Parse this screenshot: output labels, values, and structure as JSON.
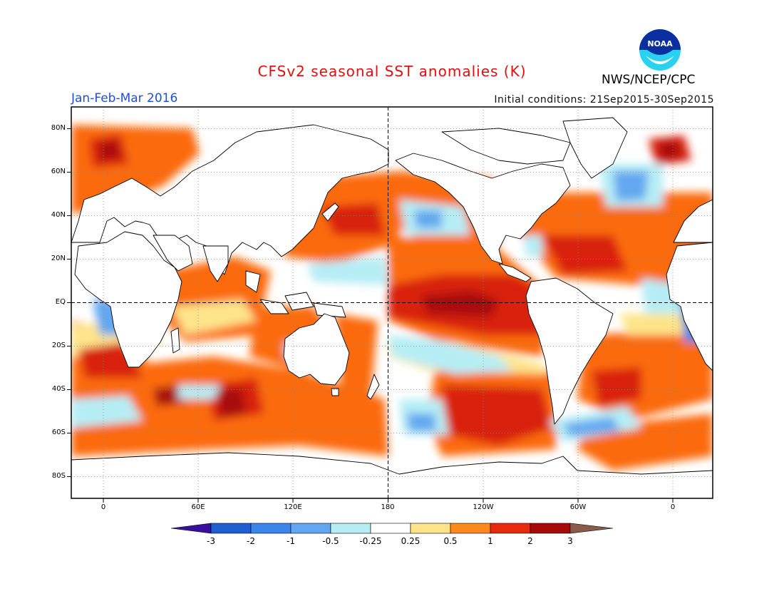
{
  "header": {
    "title": "CFSv2 seasonal SST anomalies (K)",
    "period": "Jan-Feb-Mar 2016",
    "initial_conditions": "Initial conditions: 21Sep2015-30Sep2015",
    "agency": "NWS/NCEP/CPC",
    "logo_text": "NOAA"
  },
  "map": {
    "lat_labels": [
      "80N",
      "60N",
      "40N",
      "20N",
      "EQ",
      "20S",
      "40S",
      "60S",
      "80S"
    ],
    "lon_labels": [
      "0",
      "60E",
      "120E",
      "180",
      "120W",
      "60W",
      "0"
    ],
    "lat_range": [
      -90,
      90
    ],
    "lon_range": [
      -20,
      380
    ],
    "gridlines": "dotted",
    "reference_lines": "dashed equator and 180 meridian"
  },
  "colorbar": {
    "labels": [
      "-3",
      "-2",
      "-1",
      "-0.5",
      "-0.25",
      "0.25",
      "0.5",
      "1",
      "2",
      "3"
    ],
    "colors": [
      "#3a0fa0",
      "#1f5fd0",
      "#3b86e8",
      "#62a7ef",
      "#b6edf5",
      "#ffffff",
      "#fde48a",
      "#fb8a1a",
      "#e8290e",
      "#a80a0a",
      "#8a5a4a"
    ]
  },
  "colors": {
    "title": "#e01010",
    "period": "#1f4fd8",
    "warm": "#fb6a10",
    "hot": "#d8200e",
    "cool": "#62a7ef"
  }
}
